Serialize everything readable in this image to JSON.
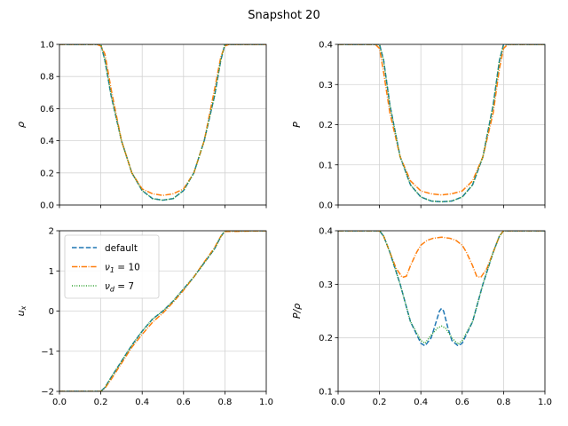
{
  "figure": {
    "title": "Snapshot 20"
  },
  "colors": {
    "default": "#1f77b4",
    "nu1": "#ff7f0e",
    "nud": "#2ca02c",
    "grid": "#d3d3d3",
    "frame": "#000000"
  },
  "legend_labels": {
    "default": "default",
    "nu1_prefix": "ν",
    "nu1_sub": "1",
    "nu1_suffix": " = 10",
    "nud_prefix": "ν",
    "nud_sub": "d",
    "nud_suffix": " = 7"
  },
  "chart_data": [
    {
      "id": "rho",
      "type": "line",
      "ylabel": "ρ",
      "xlim": [
        0,
        1
      ],
      "ylim": [
        0,
        1
      ],
      "xticks": [
        0,
        0.2,
        0.4,
        0.6,
        0.8,
        1
      ],
      "xtick_labels": [],
      "yticks": [
        0,
        0.2,
        0.4,
        0.6,
        0.8,
        1
      ],
      "ytick_labels": [
        "0.0",
        "0.2",
        "0.4",
        "0.6",
        "0.8",
        "1.0"
      ],
      "grid": true,
      "series": [
        {
          "key": "default",
          "style": "dashed",
          "x": [
            0,
            0.18,
            0.2,
            0.22,
            0.25,
            0.3,
            0.35,
            0.4,
            0.45,
            0.5,
            0.55,
            0.6,
            0.65,
            0.7,
            0.75,
            0.78,
            0.8,
            0.82,
            1.0
          ],
          "y": [
            1.0,
            1.0,
            1.0,
            0.9,
            0.68,
            0.4,
            0.2,
            0.09,
            0.04,
            0.03,
            0.04,
            0.09,
            0.2,
            0.4,
            0.68,
            0.9,
            1.0,
            1.0,
            1.0
          ]
        },
        {
          "key": "nu1",
          "style": "dashdot",
          "x": [
            0,
            0.18,
            0.2,
            0.22,
            0.25,
            0.3,
            0.35,
            0.4,
            0.45,
            0.5,
            0.55,
            0.6,
            0.65,
            0.7,
            0.75,
            0.78,
            0.8,
            0.82,
            1.0
          ],
          "y": [
            1.0,
            1.0,
            0.99,
            0.94,
            0.72,
            0.4,
            0.2,
            0.1,
            0.07,
            0.06,
            0.07,
            0.1,
            0.2,
            0.4,
            0.72,
            0.92,
            0.99,
            1.0,
            1.0
          ]
        },
        {
          "key": "nud",
          "style": "dotted",
          "x": [
            0,
            0.18,
            0.2,
            0.22,
            0.25,
            0.3,
            0.35,
            0.4,
            0.45,
            0.5,
            0.55,
            0.6,
            0.65,
            0.7,
            0.75,
            0.78,
            0.8,
            0.82,
            1.0
          ],
          "y": [
            1.0,
            1.0,
            1.0,
            0.9,
            0.68,
            0.4,
            0.2,
            0.09,
            0.04,
            0.03,
            0.04,
            0.09,
            0.2,
            0.4,
            0.68,
            0.9,
            1.0,
            1.0,
            1.0
          ]
        }
      ]
    },
    {
      "id": "pressure",
      "type": "line",
      "ylabel": "P",
      "xlim": [
        0,
        1
      ],
      "ylim": [
        0,
        0.4
      ],
      "xticks": [
        0,
        0.2,
        0.4,
        0.6,
        0.8,
        1
      ],
      "xtick_labels": [],
      "yticks": [
        0,
        0.1,
        0.2,
        0.3,
        0.4
      ],
      "ytick_labels": [
        "0.0",
        "0.1",
        "0.2",
        "0.3",
        "0.4"
      ],
      "grid": true,
      "series": [
        {
          "key": "default",
          "style": "dashed",
          "x": [
            0,
            0.18,
            0.2,
            0.22,
            0.25,
            0.3,
            0.35,
            0.4,
            0.45,
            0.5,
            0.55,
            0.6,
            0.65,
            0.7,
            0.75,
            0.78,
            0.8,
            0.82,
            1.0
          ],
          "y": [
            0.4,
            0.4,
            0.4,
            0.36,
            0.25,
            0.12,
            0.05,
            0.02,
            0.01,
            0.008,
            0.01,
            0.02,
            0.05,
            0.12,
            0.25,
            0.36,
            0.4,
            0.4,
            0.4
          ]
        },
        {
          "key": "nu1",
          "style": "dashdot",
          "x": [
            0,
            0.18,
            0.2,
            0.22,
            0.25,
            0.3,
            0.35,
            0.4,
            0.45,
            0.5,
            0.55,
            0.6,
            0.65,
            0.7,
            0.75,
            0.78,
            0.8,
            0.82,
            1.0
          ],
          "y": [
            0.4,
            0.4,
            0.39,
            0.33,
            0.23,
            0.12,
            0.06,
            0.035,
            0.028,
            0.025,
            0.028,
            0.035,
            0.06,
            0.12,
            0.23,
            0.34,
            0.39,
            0.4,
            0.4
          ]
        },
        {
          "key": "nud",
          "style": "dotted",
          "x": [
            0,
            0.18,
            0.2,
            0.22,
            0.25,
            0.3,
            0.35,
            0.4,
            0.45,
            0.5,
            0.55,
            0.6,
            0.65,
            0.7,
            0.75,
            0.78,
            0.8,
            0.82,
            1.0
          ],
          "y": [
            0.4,
            0.4,
            0.4,
            0.36,
            0.25,
            0.12,
            0.05,
            0.02,
            0.01,
            0.008,
            0.01,
            0.02,
            0.05,
            0.12,
            0.25,
            0.36,
            0.4,
            0.4,
            0.4
          ]
        }
      ]
    },
    {
      "id": "velocity",
      "type": "line",
      "ylabel_main": "u",
      "ylabel_sub": "x",
      "xlim": [
        0,
        1
      ],
      "ylim": [
        -2,
        2
      ],
      "xticks": [
        0,
        0.2,
        0.4,
        0.6,
        0.8,
        1
      ],
      "xtick_labels": [
        "0.0",
        "0.2",
        "0.4",
        "0.6",
        "0.8",
        "1.0"
      ],
      "yticks": [
        -2,
        -1,
        0,
        1,
        2
      ],
      "ytick_labels": [
        "−2",
        "−1",
        "0",
        "1",
        "2"
      ],
      "grid": true,
      "legend": "upper-left",
      "series": [
        {
          "key": "default",
          "style": "dashed",
          "x": [
            0,
            0.2,
            0.22,
            0.25,
            0.3,
            0.35,
            0.4,
            0.45,
            0.5,
            0.55,
            0.6,
            0.65,
            0.7,
            0.75,
            0.78,
            0.8,
            1.0
          ],
          "y": [
            -2.0,
            -2.0,
            -1.9,
            -1.65,
            -1.25,
            -0.85,
            -0.5,
            -0.2,
            0.0,
            0.25,
            0.55,
            0.85,
            1.2,
            1.55,
            1.85,
            2.0,
            2.0
          ]
        },
        {
          "key": "nu1",
          "style": "dashdot",
          "x": [
            0,
            0.2,
            0.22,
            0.25,
            0.3,
            0.35,
            0.4,
            0.45,
            0.5,
            0.55,
            0.6,
            0.65,
            0.7,
            0.75,
            0.78,
            0.8,
            1.0
          ],
          "y": [
            -2.0,
            -2.0,
            -1.92,
            -1.7,
            -1.3,
            -0.9,
            -0.58,
            -0.28,
            -0.05,
            0.22,
            0.52,
            0.85,
            1.22,
            1.58,
            1.86,
            1.98,
            2.0
          ]
        },
        {
          "key": "nud",
          "style": "dotted",
          "x": [
            0,
            0.2,
            0.22,
            0.25,
            0.3,
            0.35,
            0.4,
            0.45,
            0.5,
            0.55,
            0.6,
            0.65,
            0.7,
            0.75,
            0.78,
            0.8,
            1.0
          ],
          "y": [
            -2.0,
            -2.0,
            -1.9,
            -1.65,
            -1.25,
            -0.85,
            -0.5,
            -0.2,
            0.0,
            0.25,
            0.55,
            0.85,
            1.2,
            1.55,
            1.85,
            2.0,
            2.0
          ]
        }
      ]
    },
    {
      "id": "p_over_rho",
      "type": "line",
      "ylabel": "P/ρ",
      "xlim": [
        0,
        1
      ],
      "ylim": [
        0.1,
        0.4
      ],
      "xticks": [
        0,
        0.2,
        0.4,
        0.6,
        0.8,
        1
      ],
      "xtick_labels": [
        "0.0",
        "0.2",
        "0.4",
        "0.6",
        "0.8",
        "1.0"
      ],
      "yticks": [
        0.1,
        0.2,
        0.3,
        0.4
      ],
      "ytick_labels": [
        "0.1",
        "0.2",
        "0.3",
        "0.4"
      ],
      "grid": true,
      "series": [
        {
          "key": "default",
          "style": "dashed",
          "x": [
            0,
            0.2,
            0.22,
            0.25,
            0.3,
            0.35,
            0.4,
            0.42,
            0.45,
            0.47,
            0.49,
            0.5,
            0.51,
            0.53,
            0.55,
            0.58,
            0.6,
            0.65,
            0.7,
            0.75,
            0.78,
            0.8,
            1.0
          ],
          "y": [
            0.4,
            0.4,
            0.39,
            0.36,
            0.3,
            0.23,
            0.19,
            0.185,
            0.2,
            0.225,
            0.25,
            0.255,
            0.25,
            0.22,
            0.195,
            0.185,
            0.19,
            0.23,
            0.3,
            0.36,
            0.39,
            0.4,
            0.4
          ]
        },
        {
          "key": "nu1",
          "style": "dashdot",
          "x": [
            0,
            0.2,
            0.22,
            0.25,
            0.28,
            0.31,
            0.33,
            0.35,
            0.38,
            0.4,
            0.43,
            0.46,
            0.5,
            0.54,
            0.57,
            0.6,
            0.62,
            0.65,
            0.67,
            0.69,
            0.72,
            0.75,
            0.78,
            0.8,
            1.0
          ],
          "y": [
            0.4,
            0.4,
            0.39,
            0.36,
            0.33,
            0.313,
            0.315,
            0.335,
            0.36,
            0.373,
            0.382,
            0.386,
            0.388,
            0.386,
            0.382,
            0.373,
            0.36,
            0.335,
            0.315,
            0.313,
            0.33,
            0.36,
            0.39,
            0.4,
            0.4
          ]
        },
        {
          "key": "nud",
          "style": "dotted",
          "x": [
            0,
            0.2,
            0.22,
            0.25,
            0.3,
            0.35,
            0.4,
            0.42,
            0.45,
            0.48,
            0.5,
            0.52,
            0.55,
            0.58,
            0.6,
            0.65,
            0.7,
            0.75,
            0.78,
            0.8,
            1.0
          ],
          "y": [
            0.4,
            0.4,
            0.39,
            0.36,
            0.3,
            0.23,
            0.195,
            0.19,
            0.205,
            0.218,
            0.222,
            0.218,
            0.2,
            0.188,
            0.195,
            0.23,
            0.3,
            0.36,
            0.39,
            0.4,
            0.4
          ]
        }
      ]
    }
  ]
}
